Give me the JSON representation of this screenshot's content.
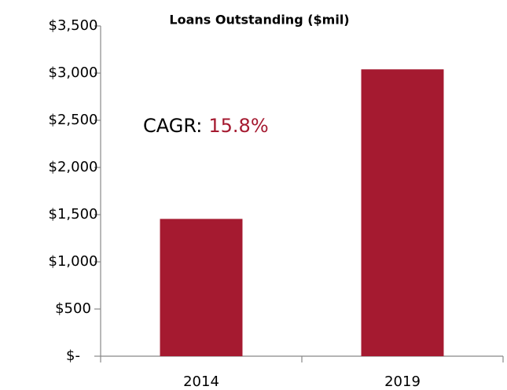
{
  "chart_data": {
    "type": "bar",
    "title": "Loans Outstanding ($mil)",
    "categories": [
      "2014",
      "2019"
    ],
    "values": [
      1455,
      3040
    ],
    "color": "#a51a30",
    "ylim": [
      0,
      3500
    ],
    "yticks": [
      {
        "value": 0,
        "label": "$-"
      },
      {
        "value": 500,
        "label": "$500"
      },
      {
        "value": 1000,
        "label": "$1,000"
      },
      {
        "value": 1500,
        "label": "$1,500"
      },
      {
        "value": 2000,
        "label": "$2,000"
      },
      {
        "value": 2500,
        "label": "$2,500"
      },
      {
        "value": 3000,
        "label": "$3,000"
      },
      {
        "value": 3500,
        "label": "$3,500"
      }
    ],
    "grid": false,
    "annotation": {
      "label": "CAGR:",
      "value": "15.8%",
      "value_color": "#a51a30"
    }
  }
}
